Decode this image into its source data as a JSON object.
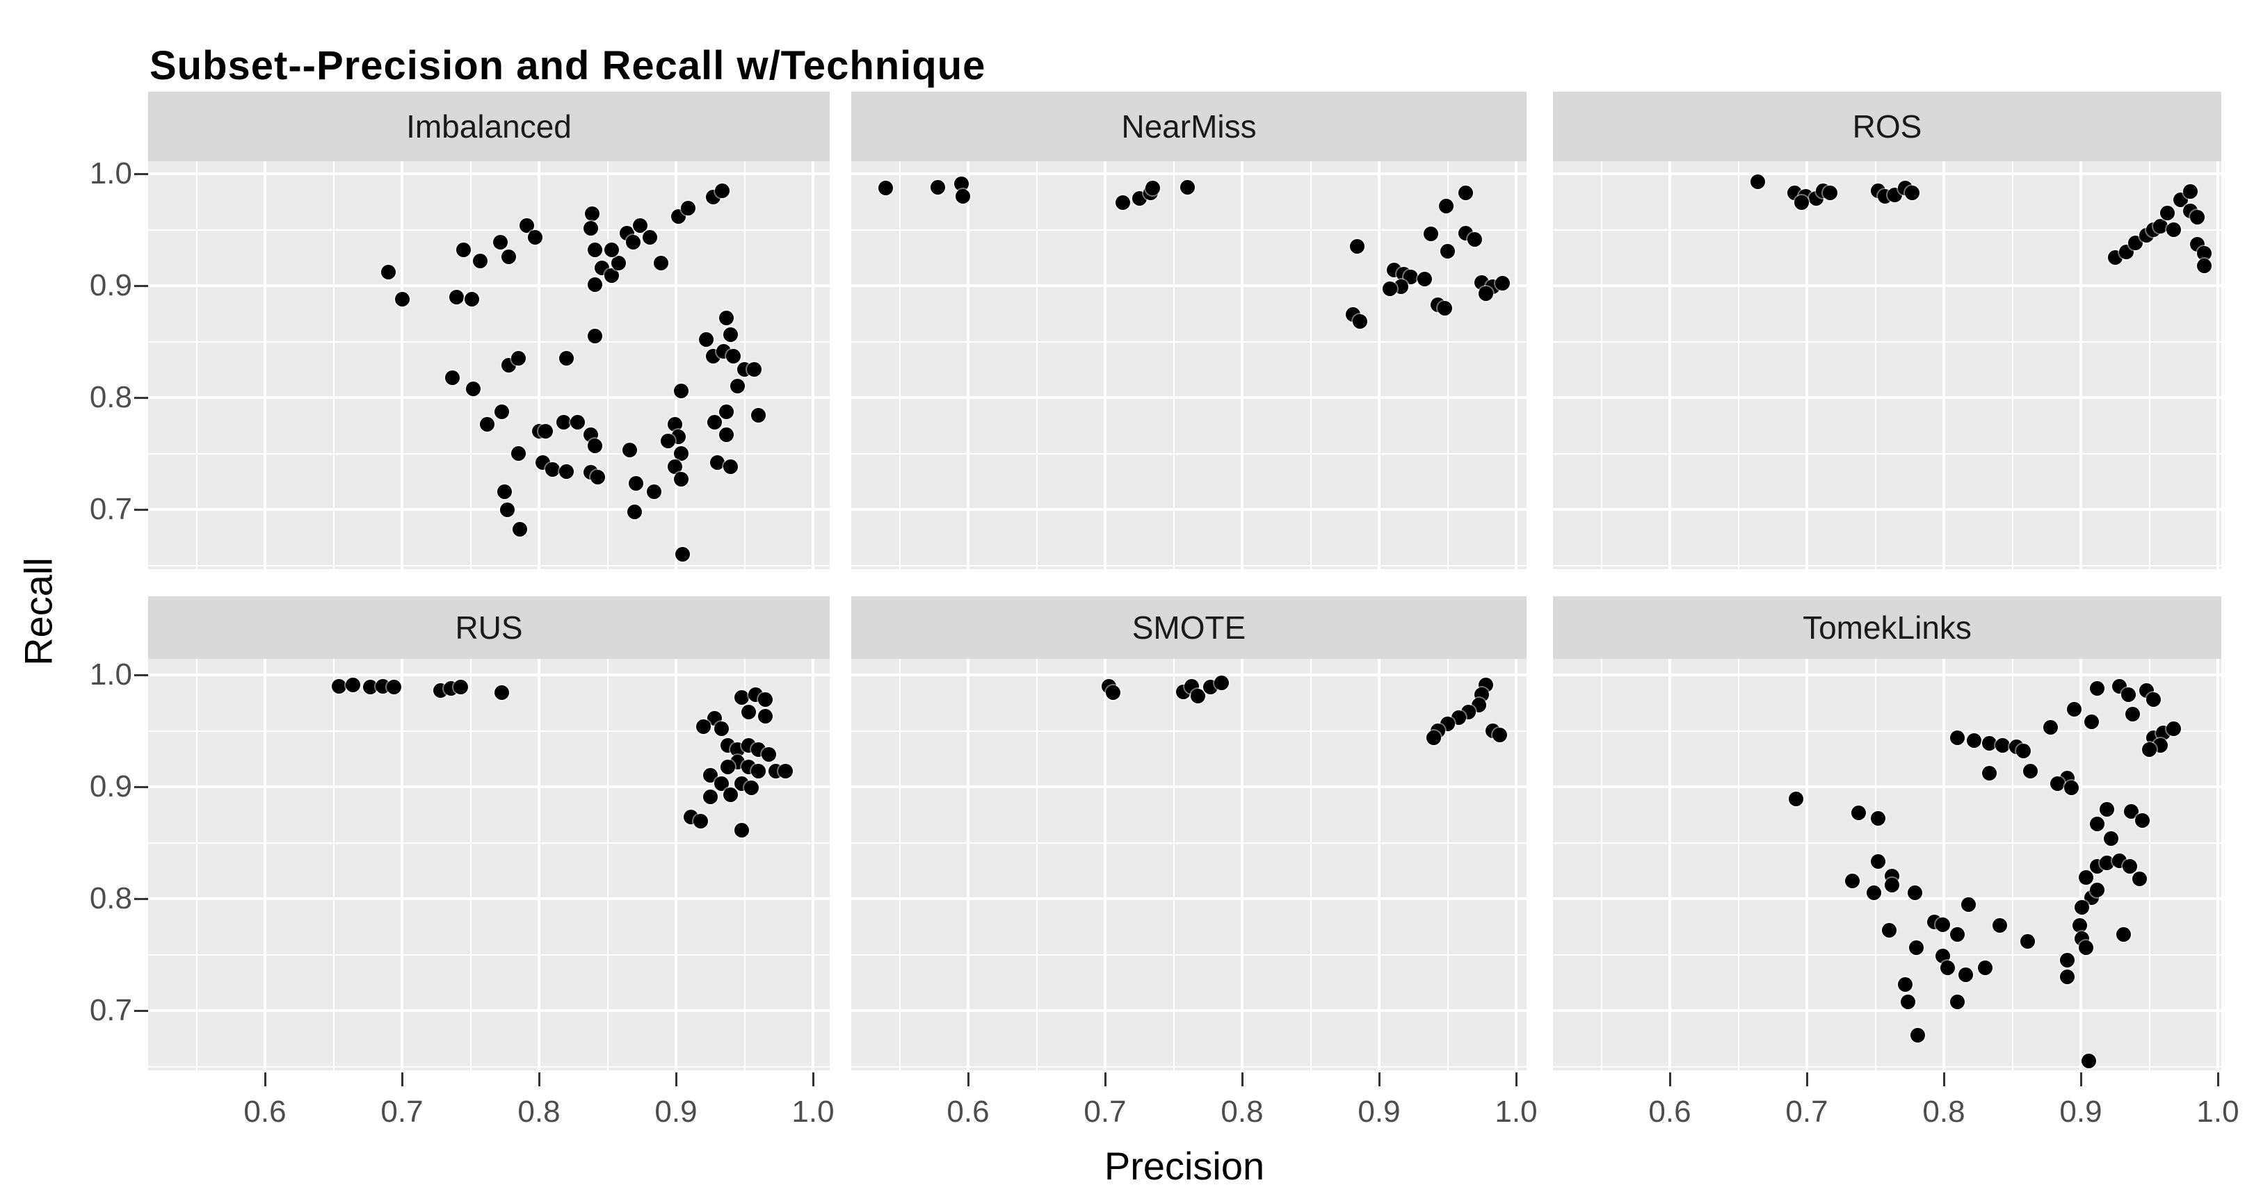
{
  "title": "Subset--Precision and Recall w/Technique",
  "axes": {
    "x_title": "Precision",
    "y_title": "Recall",
    "x_tick_labels": [
      "0.6",
      "0.7",
      "0.8",
      "0.9",
      "1.0"
    ],
    "y_tick_labels": [
      "1.0",
      "0.9",
      "0.8",
      "0.7"
    ]
  },
  "colors": {
    "panel_background": "#ebebeb",
    "strip_background": "#d9d9d9",
    "gridline": "#ffffff",
    "point": "#000000",
    "tick_label": "#4d4d4d",
    "title": "#000000"
  },
  "chart_data": {
    "type": "scatter",
    "title": "Subset--Precision and Recall w/Technique",
    "xlabel": "Precision",
    "ylabel": "Recall",
    "x_ticks": [
      0.6,
      0.7,
      0.8,
      0.9,
      1.0
    ],
    "y_ticks": [
      1.0,
      0.9,
      0.8,
      0.7
    ],
    "x_range": [
      0.515,
      1.012
    ],
    "y_range": [
      0.645,
      1.017
    ],
    "grid": "white major and minor gridlines on gray panels",
    "legend_position": "none",
    "facet_layout": {
      "rows": 2,
      "cols": 3
    },
    "facets": [
      {
        "name": "Imbalanced",
        "points": [
          [
            0.69,
            0.912
          ],
          [
            0.7,
            0.888
          ],
          [
            0.745,
            0.932
          ],
          [
            0.757,
            0.922
          ],
          [
            0.74,
            0.89
          ],
          [
            0.751,
            0.888
          ],
          [
            0.737,
            0.818
          ],
          [
            0.752,
            0.808
          ],
          [
            0.762,
            0.776
          ],
          [
            0.772,
            0.939
          ],
          [
            0.778,
            0.926
          ],
          [
            0.791,
            0.954
          ],
          [
            0.797,
            0.943
          ],
          [
            0.839,
            0.964
          ],
          [
            0.838,
            0.951
          ],
          [
            0.841,
            0.932
          ],
          [
            0.846,
            0.916
          ],
          [
            0.853,
            0.909
          ],
          [
            0.858,
            0.92
          ],
          [
            0.853,
            0.932
          ],
          [
            0.864,
            0.947
          ],
          [
            0.869,
            0.939
          ],
          [
            0.841,
            0.901
          ],
          [
            0.874,
            0.954
          ],
          [
            0.881,
            0.943
          ],
          [
            0.889,
            0.92
          ],
          [
            0.902,
            0.962
          ],
          [
            0.909,
            0.969
          ],
          [
            0.927,
            0.979
          ],
          [
            0.934,
            0.985
          ],
          [
            0.778,
            0.829
          ],
          [
            0.785,
            0.835
          ],
          [
            0.82,
            0.835
          ],
          [
            0.841,
            0.855
          ],
          [
            0.937,
            0.871
          ],
          [
            0.94,
            0.856
          ],
          [
            0.922,
            0.852
          ],
          [
            0.927,
            0.837
          ],
          [
            0.935,
            0.841
          ],
          [
            0.942,
            0.837
          ],
          [
            0.95,
            0.825
          ],
          [
            0.957,
            0.825
          ],
          [
            0.945,
            0.81
          ],
          [
            0.904,
            0.806
          ],
          [
            0.773,
            0.787
          ],
          [
            0.785,
            0.75
          ],
          [
            0.8,
            0.77
          ],
          [
            0.805,
            0.77
          ],
          [
            0.818,
            0.778
          ],
          [
            0.828,
            0.778
          ],
          [
            0.803,
            0.742
          ],
          [
            0.81,
            0.736
          ],
          [
            0.82,
            0.734
          ],
          [
            0.838,
            0.767
          ],
          [
            0.841,
            0.757
          ],
          [
            0.838,
            0.733
          ],
          [
            0.843,
            0.729
          ],
          [
            0.866,
            0.753
          ],
          [
            0.871,
            0.723
          ],
          [
            0.884,
            0.716
          ],
          [
            0.775,
            0.716
          ],
          [
            0.777,
            0.7
          ],
          [
            0.899,
            0.776
          ],
          [
            0.902,
            0.765
          ],
          [
            0.904,
            0.75
          ],
          [
            0.899,
            0.738
          ],
          [
            0.904,
            0.727
          ],
          [
            0.894,
            0.761
          ],
          [
            0.93,
            0.742
          ],
          [
            0.94,
            0.738
          ],
          [
            0.928,
            0.778
          ],
          [
            0.937,
            0.767
          ],
          [
            0.96,
            0.784
          ],
          [
            0.937,
            0.787
          ],
          [
            0.87,
            0.698
          ],
          [
            0.786,
            0.682
          ],
          [
            0.905,
            0.66
          ]
        ]
      },
      {
        "name": "NearMiss",
        "points": [
          [
            0.54,
            0.987
          ],
          [
            0.578,
            0.988
          ],
          [
            0.595,
            0.991
          ],
          [
            0.596,
            0.98
          ],
          [
            0.713,
            0.974
          ],
          [
            0.725,
            0.978
          ],
          [
            0.733,
            0.983
          ],
          [
            0.735,
            0.987
          ],
          [
            0.76,
            0.988
          ],
          [
            0.884,
            0.935
          ],
          [
            0.949,
            0.971
          ],
          [
            0.963,
            0.983
          ],
          [
            0.938,
            0.946
          ],
          [
            0.963,
            0.947
          ],
          [
            0.97,
            0.941
          ],
          [
            0.95,
            0.931
          ],
          [
            0.911,
            0.914
          ],
          [
            0.918,
            0.91
          ],
          [
            0.923,
            0.908
          ],
          [
            0.916,
            0.899
          ],
          [
            0.908,
            0.897
          ],
          [
            0.933,
            0.906
          ],
          [
            0.975,
            0.903
          ],
          [
            0.983,
            0.899
          ],
          [
            0.978,
            0.893
          ],
          [
            0.99,
            0.902
          ],
          [
            0.943,
            0.883
          ],
          [
            0.948,
            0.88
          ],
          [
            0.881,
            0.874
          ],
          [
            0.886,
            0.868
          ]
        ]
      },
      {
        "name": "ROS",
        "points": [
          [
            0.664,
            0.993
          ],
          [
            0.691,
            0.983
          ],
          [
            0.699,
            0.98
          ],
          [
            0.707,
            0.978
          ],
          [
            0.712,
            0.985
          ],
          [
            0.717,
            0.983
          ],
          [
            0.696,
            0.974
          ],
          [
            0.752,
            0.985
          ],
          [
            0.757,
            0.98
          ],
          [
            0.764,
            0.981
          ],
          [
            0.772,
            0.987
          ],
          [
            0.777,
            0.983
          ],
          [
            0.925,
            0.925
          ],
          [
            0.933,
            0.93
          ],
          [
            0.94,
            0.938
          ],
          [
            0.948,
            0.945
          ],
          [
            0.953,
            0.95
          ],
          [
            0.958,
            0.953
          ],
          [
            0.963,
            0.965
          ],
          [
            0.968,
            0.95
          ],
          [
            0.973,
            0.977
          ],
          [
            0.98,
            0.984
          ],
          [
            0.98,
            0.967
          ],
          [
            0.985,
            0.961
          ],
          [
            0.985,
            0.937
          ],
          [
            0.99,
            0.929
          ],
          [
            0.99,
            0.918
          ]
        ]
      },
      {
        "name": "RUS",
        "points": [
          [
            0.654,
            0.99
          ],
          [
            0.664,
            0.991
          ],
          [
            0.677,
            0.989
          ],
          [
            0.686,
            0.99
          ],
          [
            0.694,
            0.989
          ],
          [
            0.728,
            0.986
          ],
          [
            0.736,
            0.988
          ],
          [
            0.743,
            0.989
          ],
          [
            0.773,
            0.984
          ],
          [
            0.948,
            0.98
          ],
          [
            0.958,
            0.982
          ],
          [
            0.965,
            0.978
          ],
          [
            0.953,
            0.967
          ],
          [
            0.965,
            0.963
          ],
          [
            0.928,
            0.961
          ],
          [
            0.92,
            0.954
          ],
          [
            0.933,
            0.952
          ],
          [
            0.938,
            0.937
          ],
          [
            0.945,
            0.933
          ],
          [
            0.953,
            0.937
          ],
          [
            0.96,
            0.933
          ],
          [
            0.968,
            0.929
          ],
          [
            0.945,
            0.922
          ],
          [
            0.938,
            0.918
          ],
          [
            0.953,
            0.918
          ],
          [
            0.96,
            0.914
          ],
          [
            0.973,
            0.914
          ],
          [
            0.98,
            0.914
          ],
          [
            0.925,
            0.91
          ],
          [
            0.933,
            0.903
          ],
          [
            0.948,
            0.903
          ],
          [
            0.955,
            0.899
          ],
          [
            0.94,
            0.893
          ],
          [
            0.925,
            0.891
          ],
          [
            0.911,
            0.873
          ],
          [
            0.918,
            0.869
          ],
          [
            0.948,
            0.861
          ]
        ]
      },
      {
        "name": "SMOTE",
        "points": [
          [
            0.703,
            0.99
          ],
          [
            0.706,
            0.984
          ],
          [
            0.757,
            0.985
          ],
          [
            0.763,
            0.99
          ],
          [
            0.768,
            0.981
          ],
          [
            0.777,
            0.989
          ],
          [
            0.785,
            0.993
          ],
          [
            0.978,
            0.991
          ],
          [
            0.975,
            0.982
          ],
          [
            0.973,
            0.973
          ],
          [
            0.965,
            0.967
          ],
          [
            0.958,
            0.962
          ],
          [
            0.95,
            0.956
          ],
          [
            0.943,
            0.95
          ],
          [
            0.94,
            0.944
          ],
          [
            0.983,
            0.95
          ],
          [
            0.988,
            0.946
          ]
        ]
      },
      {
        "name": "TomekLinks",
        "points": [
          [
            0.912,
            0.988
          ],
          [
            0.928,
            0.99
          ],
          [
            0.935,
            0.982
          ],
          [
            0.948,
            0.986
          ],
          [
            0.953,
            0.978
          ],
          [
            0.895,
            0.969
          ],
          [
            0.908,
            0.958
          ],
          [
            0.938,
            0.965
          ],
          [
            0.878,
            0.953
          ],
          [
            0.953,
            0.944
          ],
          [
            0.96,
            0.948
          ],
          [
            0.968,
            0.952
          ],
          [
            0.958,
            0.937
          ],
          [
            0.95,
            0.933
          ],
          [
            0.81,
            0.944
          ],
          [
            0.822,
            0.941
          ],
          [
            0.833,
            0.939
          ],
          [
            0.843,
            0.937
          ],
          [
            0.853,
            0.936
          ],
          [
            0.858,
            0.932
          ],
          [
            0.692,
            0.889
          ],
          [
            0.833,
            0.912
          ],
          [
            0.863,
            0.914
          ],
          [
            0.89,
            0.908
          ],
          [
            0.883,
            0.903
          ],
          [
            0.893,
            0.899
          ],
          [
            0.919,
            0.88
          ],
          [
            0.937,
            0.878
          ],
          [
            0.945,
            0.87
          ],
          [
            0.912,
            0.867
          ],
          [
            0.922,
            0.854
          ],
          [
            0.904,
            0.819
          ],
          [
            0.912,
            0.829
          ],
          [
            0.919,
            0.832
          ],
          [
            0.928,
            0.834
          ],
          [
            0.936,
            0.829
          ],
          [
            0.943,
            0.818
          ],
          [
            0.908,
            0.801
          ],
          [
            0.912,
            0.808
          ],
          [
            0.901,
            0.792
          ],
          [
            0.738,
            0.877
          ],
          [
            0.752,
            0.872
          ],
          [
            0.752,
            0.833
          ],
          [
            0.762,
            0.82
          ],
          [
            0.749,
            0.805
          ],
          [
            0.762,
            0.812
          ],
          [
            0.779,
            0.805
          ],
          [
            0.733,
            0.816
          ],
          [
            0.818,
            0.795
          ],
          [
            0.76,
            0.772
          ],
          [
            0.793,
            0.779
          ],
          [
            0.799,
            0.777
          ],
          [
            0.81,
            0.768
          ],
          [
            0.841,
            0.776
          ],
          [
            0.78,
            0.756
          ],
          [
            0.799,
            0.749
          ],
          [
            0.803,
            0.738
          ],
          [
            0.816,
            0.732
          ],
          [
            0.83,
            0.738
          ],
          [
            0.861,
            0.762
          ],
          [
            0.772,
            0.723
          ],
          [
            0.774,
            0.708
          ],
          [
            0.81,
            0.708
          ],
          [
            0.899,
            0.776
          ],
          [
            0.901,
            0.764
          ],
          [
            0.904,
            0.756
          ],
          [
            0.931,
            0.768
          ],
          [
            0.89,
            0.745
          ],
          [
            0.89,
            0.73
          ],
          [
            0.781,
            0.678
          ],
          [
            0.906,
            0.655
          ]
        ]
      }
    ]
  }
}
